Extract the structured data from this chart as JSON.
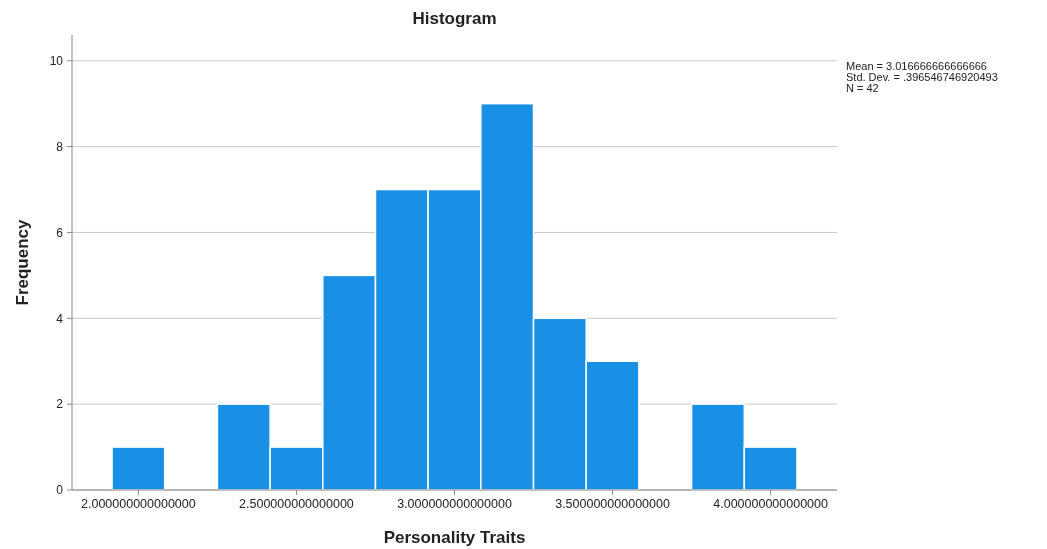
{
  "chart_data": {
    "type": "histogram",
    "title": "Histogram",
    "xlabel": "Personality Traits",
    "ylabel": "Frequency",
    "bins": [
      1.9167,
      2.0833,
      2.25,
      2.4167,
      2.5833,
      2.75,
      2.9167,
      3.0833,
      3.25,
      3.4167,
      3.5833,
      3.75,
      3.9167,
      4.0833
    ],
    "values": [
      1,
      0,
      2,
      1,
      5,
      7,
      7,
      9,
      4,
      3,
      0,
      2,
      1
    ],
    "color": "#1990e6",
    "xlim": [
      1.79,
      4.21
    ],
    "xticks": [
      {
        "value": 2,
        "label": "2.000000000000000"
      },
      {
        "value": 2.5,
        "label": "2.500000000000000"
      },
      {
        "value": 3,
        "label": "3.000000000000000"
      },
      {
        "value": 3.5,
        "label": "3.500000000000000"
      },
      {
        "value": 4,
        "label": "4.000000000000000"
      }
    ],
    "ylim": [
      0,
      10.6
    ],
    "yticks": [
      0,
      2,
      4,
      6,
      8,
      10
    ],
    "grid": "y",
    "annotations": [
      "Mean = 3.016666666666666",
      "Std. Dev. = .396546746920493",
      "N = 42"
    ]
  }
}
